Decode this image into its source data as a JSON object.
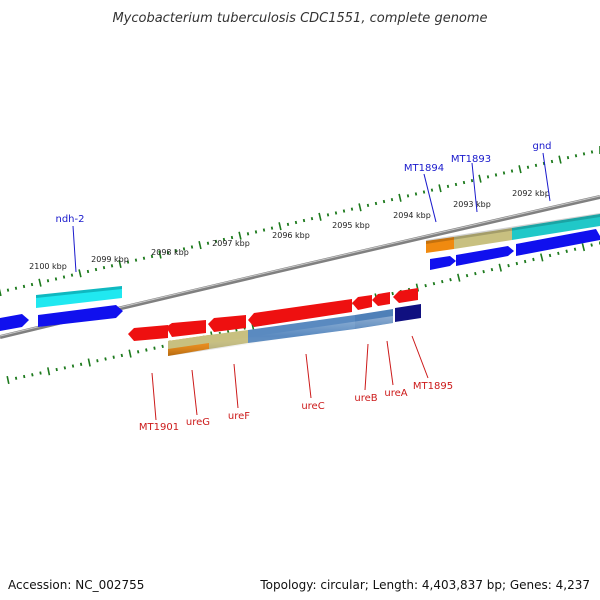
{
  "title": "Mycobacterium tuberculosis CDC1551, complete genome",
  "footer": {
    "accession": "Accession: NC_002755",
    "topology": "Topology: circular; Length: 4,403,837 bp; Genes: 4,237"
  },
  "kbp_labels": [
    "2100 kbp",
    "2099 kbp",
    "2098 kbp",
    "2097 kbp",
    "2096 kbp",
    "2095 kbp",
    "2094 kbp",
    "2093 kbp",
    "2092 kbp"
  ],
  "top_gene_labels": [
    "ndh-2",
    "MT1894",
    "MT1893",
    "gnd"
  ],
  "bottom_gene_labels": [
    "MT1901",
    "ureG",
    "ureF",
    "ureC",
    "ureB",
    "ureA",
    "MT1895"
  ],
  "colors": {
    "backbone": "#808080",
    "tick_green": "#1d7a1d",
    "label_blue": "#1a1acc",
    "label_red": "#cc1a1a",
    "cds_blue": "#1010ee",
    "cds_red": "#ee1010",
    "cyan": "#20e8f0",
    "teal": "#20b8b8",
    "olive": "#c8c080",
    "orange": "#f08a10",
    "steel": "#5a8ac0",
    "navy": "#101080"
  }
}
